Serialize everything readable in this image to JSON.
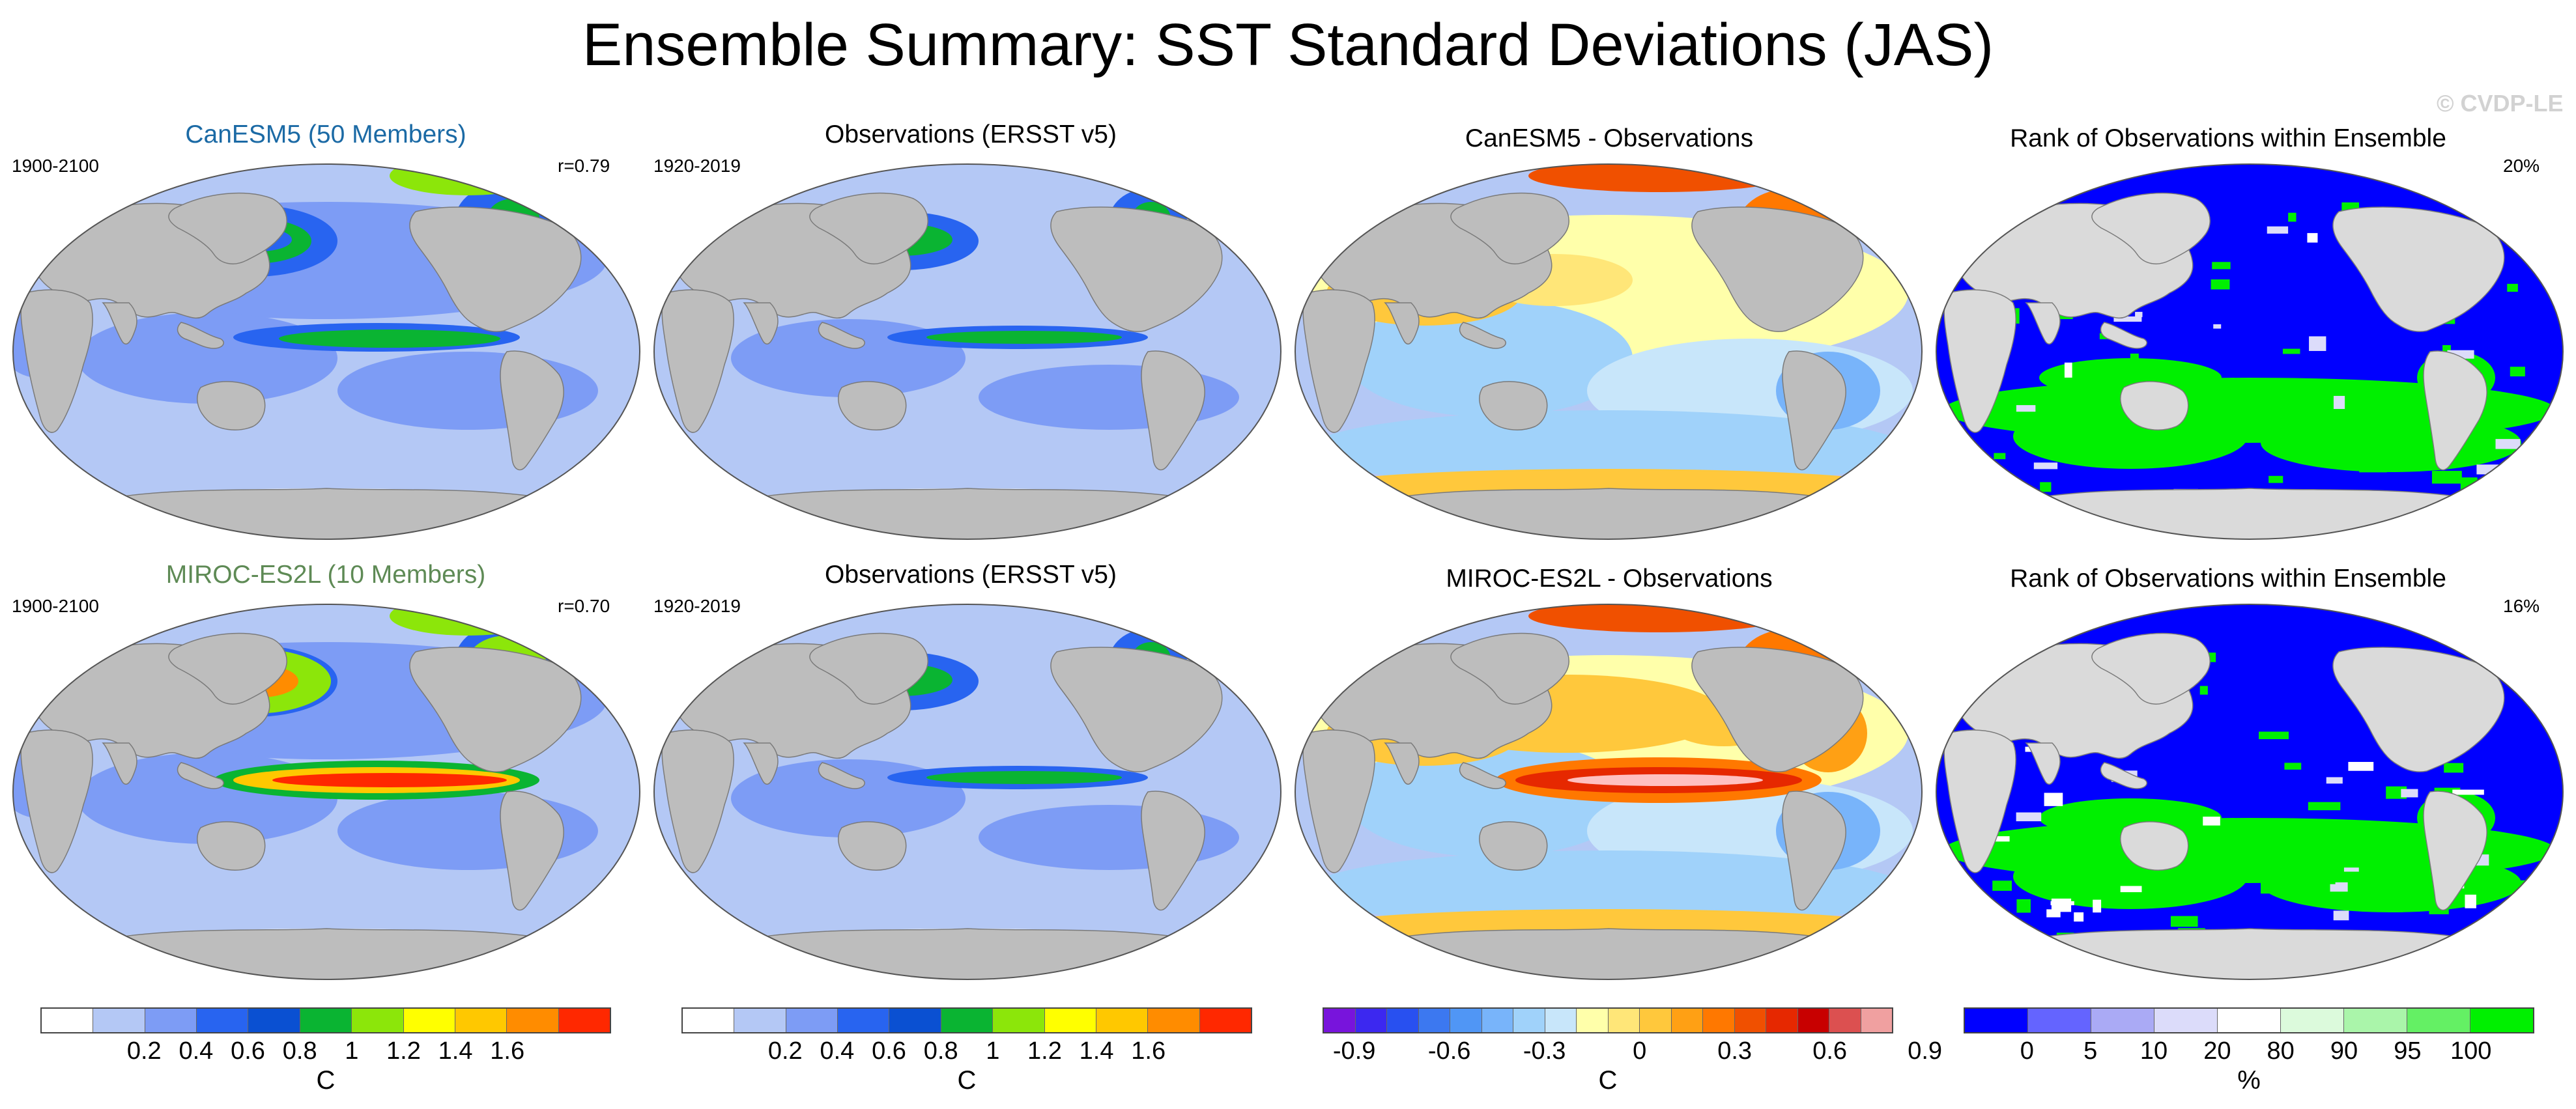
{
  "header": {
    "title": "Ensemble Summary: SST Standard Deviations (JAS)",
    "copyright": "© CVDP-LE"
  },
  "rows": [
    {
      "model_title": "CanESM5 (50 Members)",
      "model_period": "1900-2100",
      "model_corr": "r=0.79",
      "obs_title": "Observations (ERSST v5)",
      "obs_period": "1920-2019",
      "diff_title": "CanESM5 - Observations",
      "rank_title": "Rank of Observations within Ensemble",
      "rank_pct": "20%"
    },
    {
      "model_title": "MIROC-ES2L (10 Members)",
      "model_period": "1900-2100",
      "model_corr": "r=0.70",
      "obs_title": "Observations (ERSST v5)",
      "obs_period": "1920-2019",
      "diff_title": "MIROC-ES2L - Observations",
      "rank_title": "Rank of Observations within Ensemble",
      "rank_pct": "16%"
    }
  ],
  "colorbars": [
    {
      "unit": "C",
      "ticks": [
        "0.2",
        "0.4",
        "0.6",
        "0.8",
        "1",
        "1.2",
        "1.4",
        "1.6"
      ],
      "colors": [
        "#ffffff",
        "#b4c8f5",
        "#7d9cf5",
        "#2864f0",
        "#0a50d2",
        "#0ab432",
        "#8ce60a",
        "#ffff00",
        "#ffc800",
        "#ff8c00",
        "#ff2800"
      ]
    },
    {
      "unit": "C",
      "ticks": [
        "0.2",
        "0.4",
        "0.6",
        "0.8",
        "1",
        "1.2",
        "1.4",
        "1.6"
      ],
      "colors": [
        "#ffffff",
        "#b4c8f5",
        "#7d9cf5",
        "#2864f0",
        "#0a50d2",
        "#0ab432",
        "#8ce60a",
        "#ffff00",
        "#ffc800",
        "#ff8c00",
        "#ff2800"
      ]
    },
    {
      "unit": "C",
      "ticks": [
        "-0.9",
        "-0.6",
        "-0.3",
        "0",
        "0.3",
        "0.6",
        "0.9"
      ],
      "colors": [
        "#7814dc",
        "#3c28f0",
        "#2850f0",
        "#3c78f0",
        "#5096f5",
        "#78b4fa",
        "#a0d2fa",
        "#c8e6fa",
        "#ffffaa",
        "#ffe678",
        "#ffc83c",
        "#ffa014",
        "#ff7800",
        "#f05000",
        "#e62800",
        "#c80000",
        "#dc5050",
        "#f0a0a0"
      ]
    },
    {
      "unit": "%",
      "ticks": [
        "0",
        "5",
        "10",
        "20",
        "80",
        "90",
        "95",
        "100"
      ],
      "colors": [
        "#0000ff",
        "#6464ff",
        "#aaaaf5",
        "#dcdcfa",
        "#ffffff",
        "#dcfadc",
        "#aaf5aa",
        "#64f064",
        "#00f000"
      ]
    }
  ]
}
